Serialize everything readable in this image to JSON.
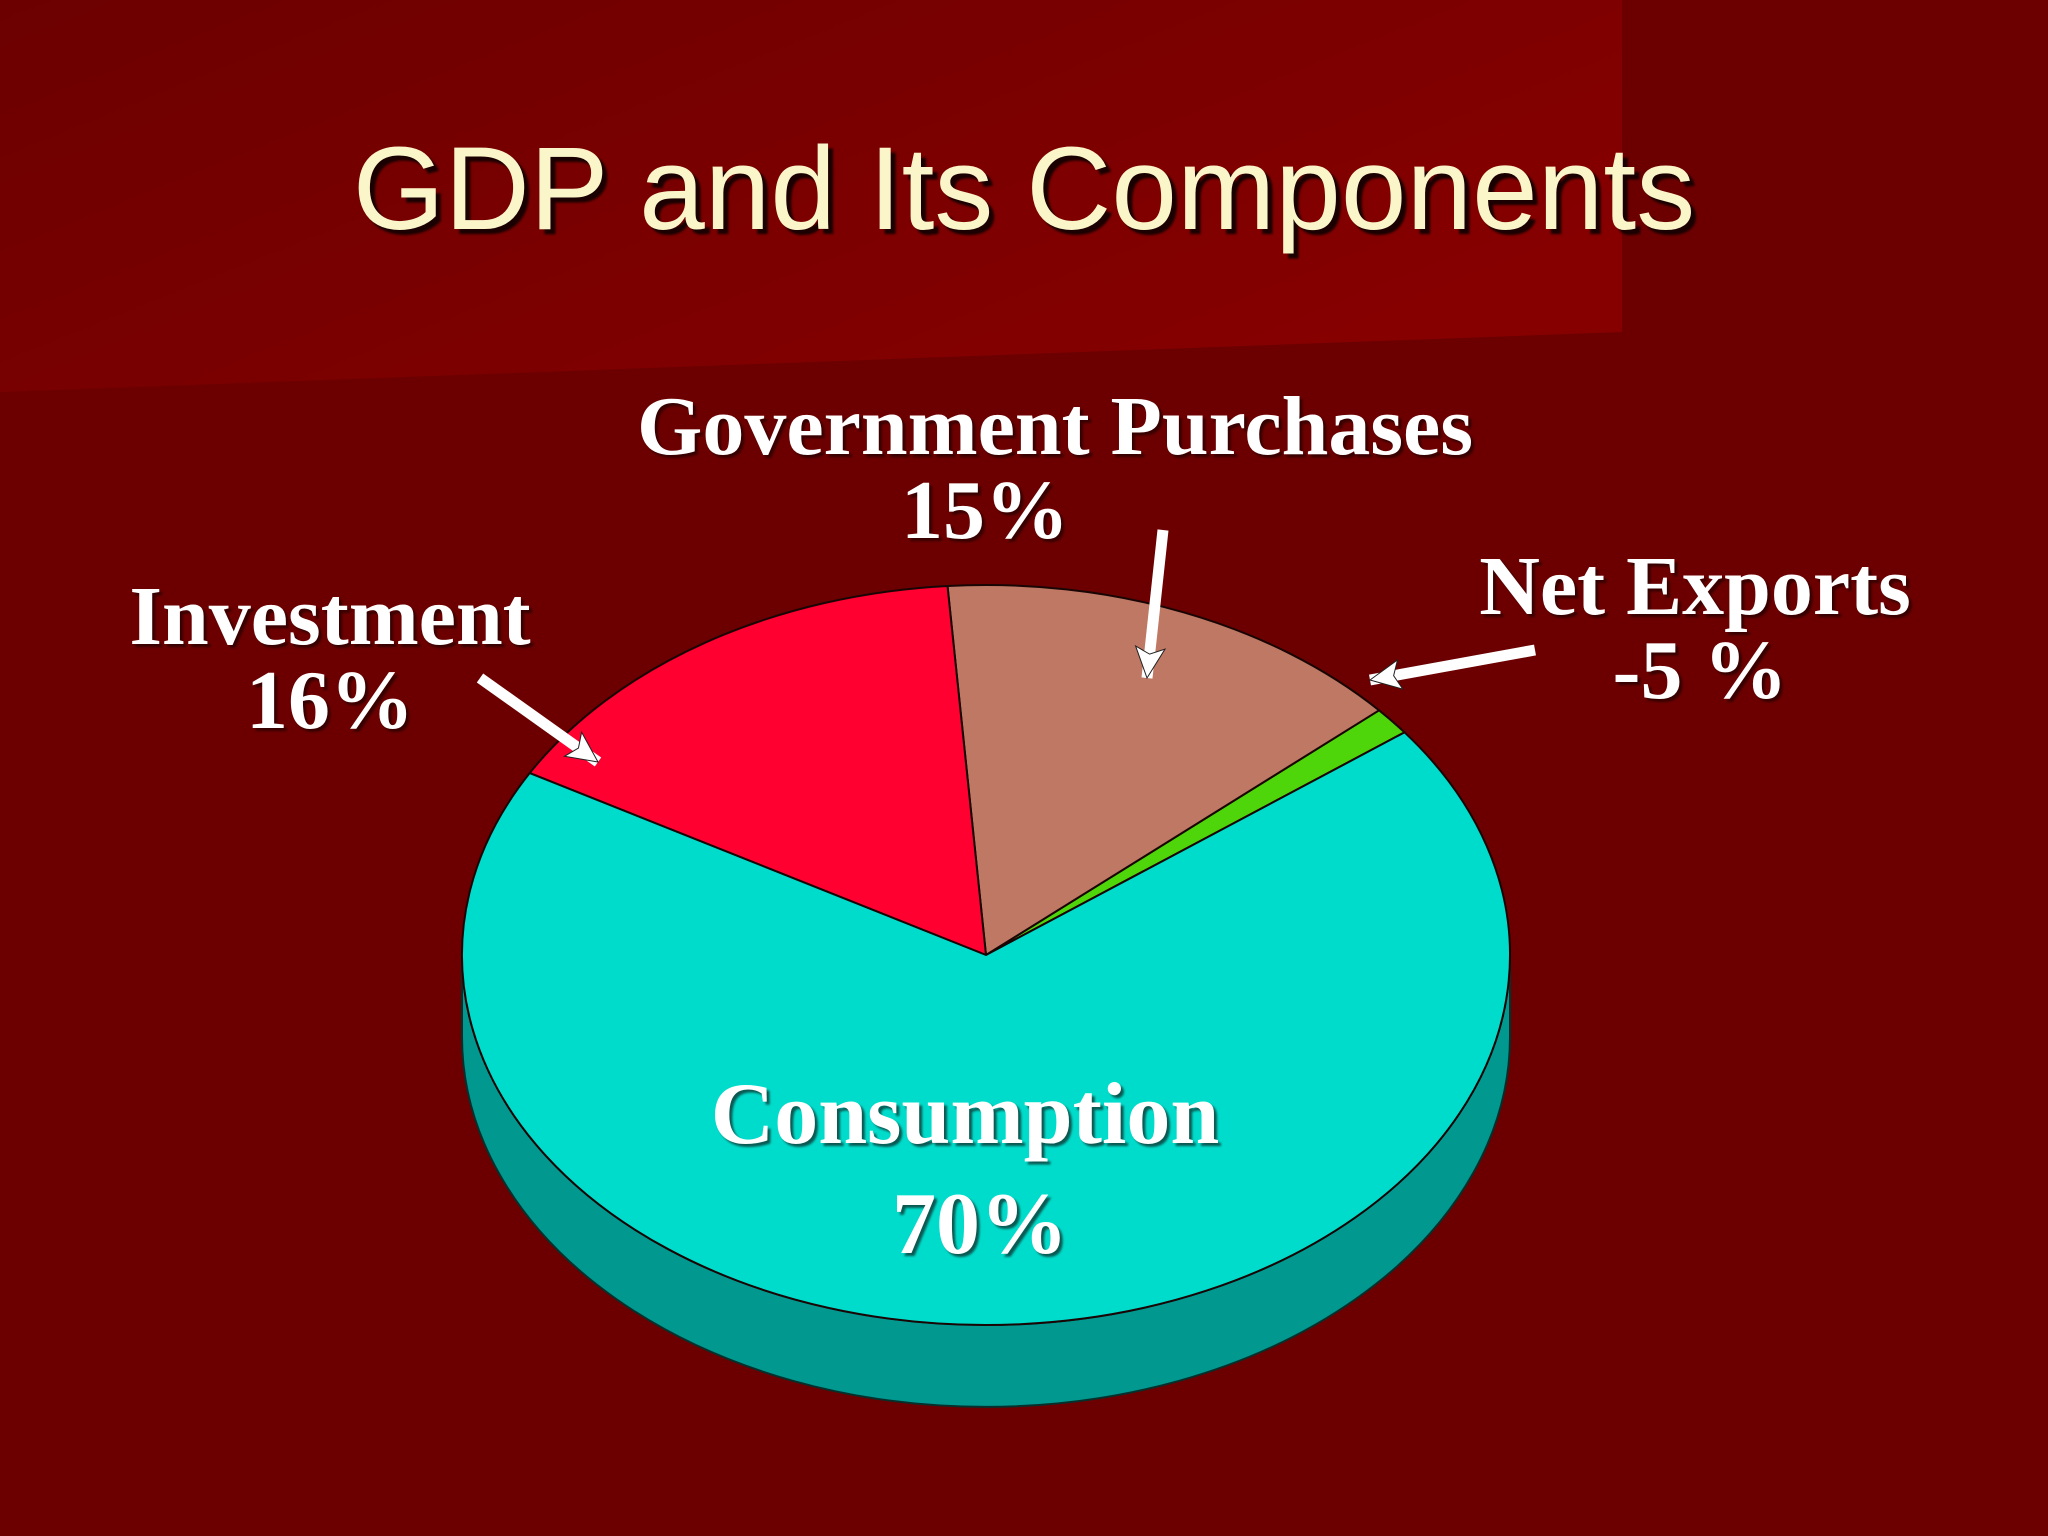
{
  "slide": {
    "title": "GDP and Its Components"
  },
  "colors": {
    "background": "#6c0000",
    "title": "#fbf6c9",
    "consumption": "#00dccb",
    "consumption_side": "#00988f",
    "investment": "#ff0030",
    "government": "#be7863",
    "net_exports": "#4ed60a"
  },
  "chart_data": {
    "type": "pie",
    "style": "3d",
    "categories": [
      "Consumption",
      "Investment",
      "Government Purchases",
      "Net Exports"
    ],
    "values": [
      70,
      16,
      15,
      -5
    ],
    "value_labels": [
      "70%",
      "16%",
      "15%",
      "-5 %"
    ]
  }
}
